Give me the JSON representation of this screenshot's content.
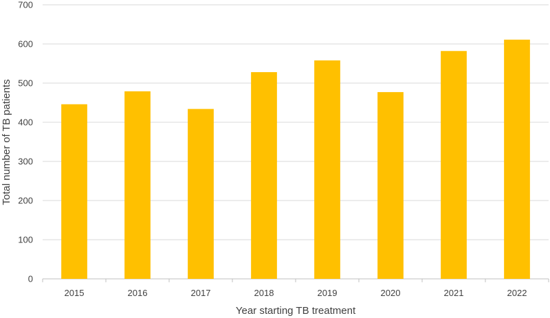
{
  "chart_data": {
    "type": "bar",
    "title": "",
    "xlabel": "Year starting TB treatment",
    "ylabel": "Total number of TB patients",
    "categories": [
      "2015",
      "2016",
      "2017",
      "2018",
      "2019",
      "2020",
      "2021",
      "2022"
    ],
    "values": [
      446,
      479,
      434,
      528,
      558,
      477,
      582,
      611
    ],
    "ylim": [
      0,
      700
    ],
    "yticks": [
      "0",
      "100",
      "200",
      "300",
      "400",
      "500",
      "600",
      "700"
    ],
    "grid": true,
    "legend": "none",
    "colors": {
      "bar": "#FFC000"
    }
  }
}
